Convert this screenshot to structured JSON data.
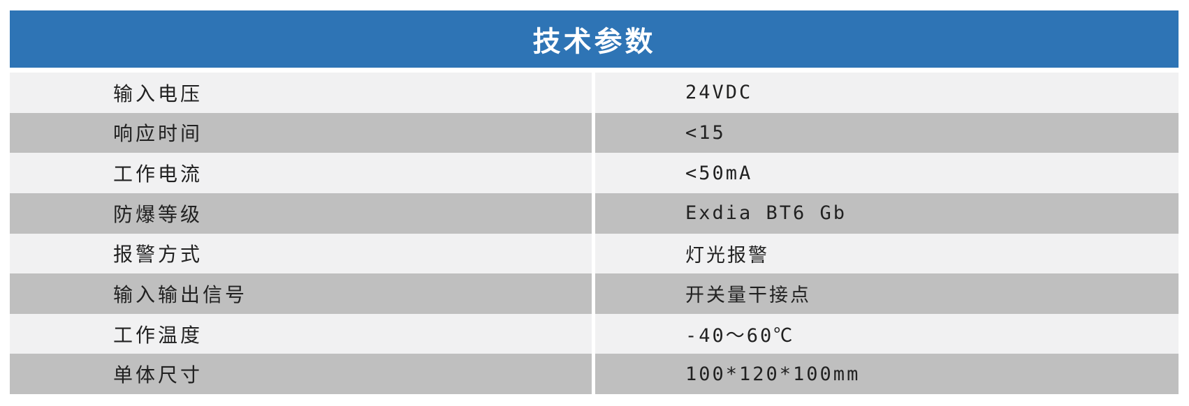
{
  "table": {
    "title": "技术参数",
    "colors": {
      "header_bg": "#2e74b5",
      "header_text": "#ffffff",
      "row_light": "#f1f1f2",
      "row_dark": "#bfbfbf",
      "cell_text": "#212121",
      "page_bg": "#ffffff"
    },
    "rows": [
      {
        "label": "输入电压",
        "value": "24VDC"
      },
      {
        "label": "响应时间",
        "value": "<15"
      },
      {
        "label": "工作电流",
        "value": "<50mA"
      },
      {
        "label": "防爆等级",
        "value": "Exdia BT6 Gb"
      },
      {
        "label": "报警方式",
        "value": "灯光报警"
      },
      {
        "label": "输入输出信号",
        "value": "开关量干接点"
      },
      {
        "label": "工作温度",
        "value": "-40～60℃"
      },
      {
        "label": "单体尺寸",
        "value": "100*120*100mm"
      }
    ]
  }
}
